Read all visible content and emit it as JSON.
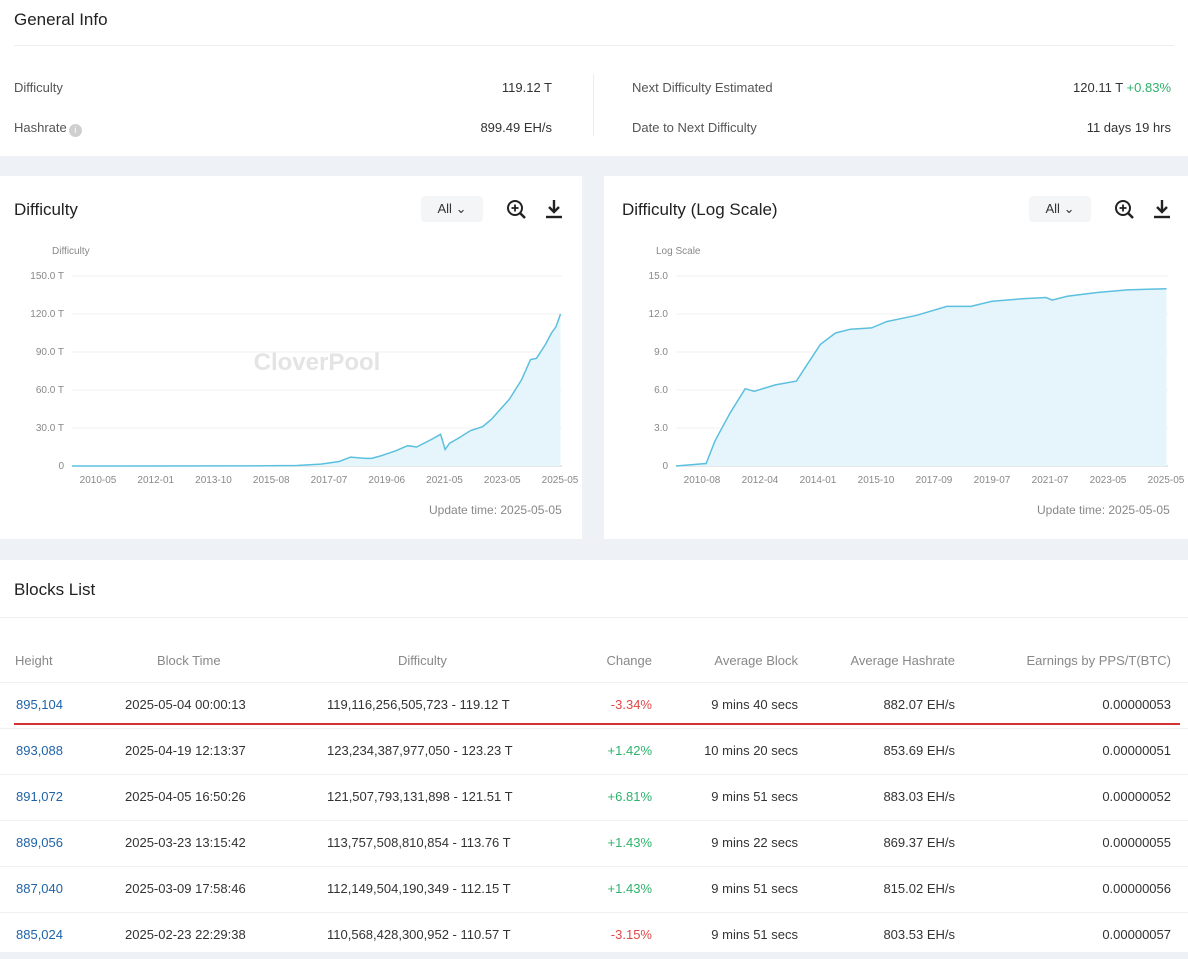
{
  "general": {
    "title": "General Info",
    "difficulty_label": "Difficulty",
    "difficulty_value": "119.12 T",
    "hashrate_label": "Hashrate",
    "hashrate_value": "899.49 EH/s",
    "next_label": "Next Difficulty Estimated",
    "next_value": "120.11 T",
    "next_change": "+0.83%",
    "date_label": "Date to Next Difficulty",
    "date_value": "11 days 19 hrs"
  },
  "charts_common": {
    "select_label": "All",
    "update_time": "Update time: 2025-05-05",
    "watermark": "CloverPool",
    "colors": {
      "line": "#5bc0de",
      "fill": "#e6f5fb"
    }
  },
  "chart_data": [
    {
      "type": "area",
      "title": "Difficulty",
      "ylabel": "Difficulty",
      "y_ticks": [
        "0",
        "30.0 T",
        "60.0 T",
        "90.0 T",
        "120.0 T",
        "150.0 T"
      ],
      "ylim": [
        0,
        150
      ],
      "x_ticks": [
        "2010-05",
        "2012-01",
        "2013-10",
        "2015-08",
        "2017-07",
        "2019-06",
        "2021-05",
        "2023-05",
        "2025-05"
      ],
      "xlim": [
        2009.0,
        2025.35
      ],
      "x": [
        2009.0,
        2015.0,
        2016.5,
        2017.3,
        2017.9,
        2018.3,
        2018.8,
        2019.0,
        2019.3,
        2019.8,
        2020.2,
        2020.5,
        2021.0,
        2021.3,
        2021.45,
        2021.6,
        2021.9,
        2022.3,
        2022.7,
        2023.0,
        2023.3,
        2023.6,
        2024.0,
        2024.3,
        2024.5,
        2024.8,
        2025.0,
        2025.15,
        2025.3
      ],
      "y": [
        0,
        0.1,
        0.4,
        1.5,
        3.5,
        7,
        6,
        6,
        8,
        12,
        16,
        15,
        21,
        25,
        13,
        18,
        22,
        28,
        31,
        37,
        45,
        53,
        68,
        84,
        85,
        96,
        105,
        110,
        120
      ]
    },
    {
      "type": "area",
      "title": "Difficulty (Log Scale)",
      "ylabel": "Log Scale",
      "y_ticks": [
        "0",
        "3.0",
        "6.0",
        "9.0",
        "12.0",
        "15.0"
      ],
      "ylim": [
        0,
        15
      ],
      "x_ticks": [
        "2010-08",
        "2012-04",
        "2014-01",
        "2015-10",
        "2017-09",
        "2019-07",
        "2021-07",
        "2023-05",
        "2025-05"
      ],
      "xlim": [
        2009.0,
        2025.35
      ],
      "x": [
        2009.0,
        2009.5,
        2010.0,
        2010.3,
        2010.8,
        2011.3,
        2011.6,
        2012.3,
        2013.0,
        2013.3,
        2013.8,
        2014.3,
        2014.8,
        2015.5,
        2016.0,
        2017.0,
        2018.0,
        2018.8,
        2019.5,
        2020.5,
        2021.3,
        2021.5,
        2022.0,
        2023.0,
        2024.0,
        2025.3
      ],
      "y": [
        0,
        0.1,
        0.2,
        2.0,
        4.2,
        6.1,
        5.9,
        6.4,
        6.7,
        7.8,
        9.6,
        10.5,
        10.8,
        10.9,
        11.4,
        11.9,
        12.6,
        12.6,
        13.0,
        13.2,
        13.3,
        13.1,
        13.4,
        13.7,
        13.9,
        14.0
      ]
    }
  ],
  "blocks": {
    "title": "Blocks List",
    "headers": [
      "Height",
      "Block Time",
      "Difficulty",
      "Change",
      "Average Block",
      "Average Hashrate",
      "Earnings by PPS/T(BTC)"
    ],
    "rows": [
      {
        "height": "895,104",
        "time": "2025-05-04 00:00:13",
        "difficulty": "119,116,256,505,723 - 119.12 T",
        "change": "-3.34%",
        "avg_block": "9 mins 40 secs",
        "hashrate": "882.07 EH/s",
        "earnings": "0.00000053"
      },
      {
        "height": "893,088",
        "time": "2025-04-19 12:13:37",
        "difficulty": "123,234,387,977,050 - 123.23 T",
        "change": "+1.42%",
        "avg_block": "10 mins 20 secs",
        "hashrate": "853.69 EH/s",
        "earnings": "0.00000051"
      },
      {
        "height": "891,072",
        "time": "2025-04-05 16:50:26",
        "difficulty": "121,507,793,131,898 - 121.51 T",
        "change": "+6.81%",
        "avg_block": "9 mins 51 secs",
        "hashrate": "883.03 EH/s",
        "earnings": "0.00000052"
      },
      {
        "height": "889,056",
        "time": "2025-03-23 13:15:42",
        "difficulty": "113,757,508,810,854 - 113.76 T",
        "change": "+1.43%",
        "avg_block": "9 mins 22 secs",
        "hashrate": "869.37 EH/s",
        "earnings": "0.00000055"
      },
      {
        "height": "887,040",
        "time": "2025-03-09 17:58:46",
        "difficulty": "112,149,504,190,349 - 112.15 T",
        "change": "+1.43%",
        "avg_block": "9 mins 51 secs",
        "hashrate": "815.02 EH/s",
        "earnings": "0.00000056"
      },
      {
        "height": "885,024",
        "time": "2025-02-23 22:29:38",
        "difficulty": "110,568,428,300,952 - 110.57 T",
        "change": "-3.15%",
        "avg_block": "9 mins 51 secs",
        "hashrate": "803.53 EH/s",
        "earnings": "0.00000057"
      }
    ]
  }
}
